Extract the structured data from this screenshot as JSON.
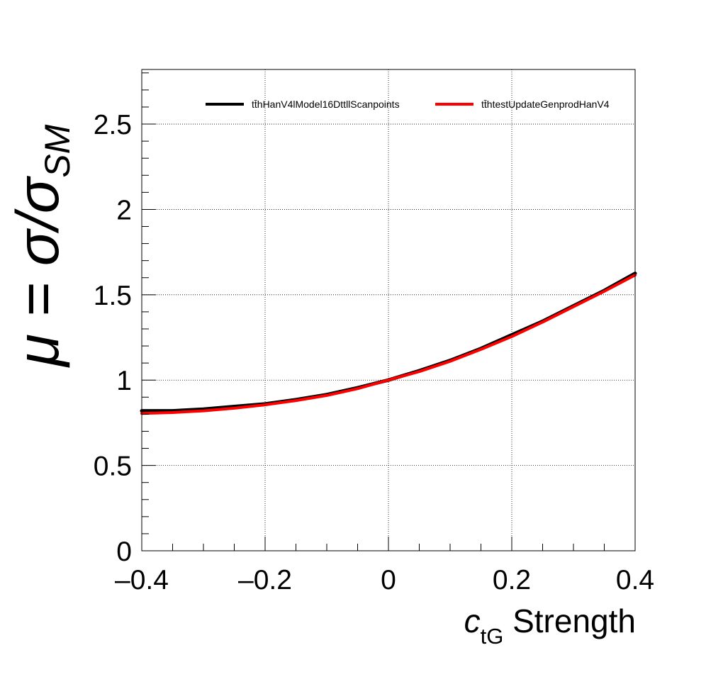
{
  "chart_data": {
    "type": "line",
    "title": "",
    "xlabel": {
      "symbol": "c",
      "subscript": "tG",
      "suffix": " Strength"
    },
    "ylabel": {
      "text": "μ = σ/σ",
      "subscript": "SM"
    },
    "xlim": [
      -0.4,
      0.4
    ],
    "ylim": [
      0,
      2.82
    ],
    "x_ticks": [
      -0.4,
      -0.2,
      0,
      0.2,
      0.4
    ],
    "x_tick_labels": [
      "–0.4",
      "–0.2",
      "0",
      "0.2",
      "0.4"
    ],
    "y_ticks": [
      0,
      0.5,
      1,
      1.5,
      2,
      2.5
    ],
    "y_tick_labels": [
      "0",
      "0.5",
      "1",
      "1.5",
      "2",
      "2.5"
    ],
    "grid": true,
    "legend_placement": "top-right",
    "series": [
      {
        "name": "tt̄hHanV4lModel16DttllScanpoints",
        "color": "#000000",
        "x": [
          -0.4,
          -0.35,
          -0.3,
          -0.25,
          -0.2,
          -0.15,
          -0.1,
          -0.05,
          0.0,
          0.05,
          0.1,
          0.15,
          0.2,
          0.25,
          0.3,
          0.35,
          0.4
        ],
        "y": [
          0.82,
          0.82,
          0.83,
          0.845,
          0.86,
          0.885,
          0.915,
          0.955,
          1.0,
          1.055,
          1.115,
          1.185,
          1.265,
          1.345,
          1.435,
          1.525,
          1.625
        ]
      },
      {
        "name": "tt̄htestUpdateGenprodHanV4",
        "color": "#ff0000",
        "x": [
          -0.4,
          -0.35,
          -0.3,
          -0.25,
          -0.2,
          -0.15,
          -0.1,
          -0.05,
          0.0,
          0.05,
          0.1,
          0.15,
          0.2,
          0.25,
          0.3,
          0.35,
          0.4
        ],
        "y": [
          0.805,
          0.81,
          0.82,
          0.835,
          0.855,
          0.88,
          0.91,
          0.95,
          1.0,
          1.05,
          1.11,
          1.18,
          1.255,
          1.34,
          1.43,
          1.52,
          1.615
        ]
      }
    ]
  }
}
